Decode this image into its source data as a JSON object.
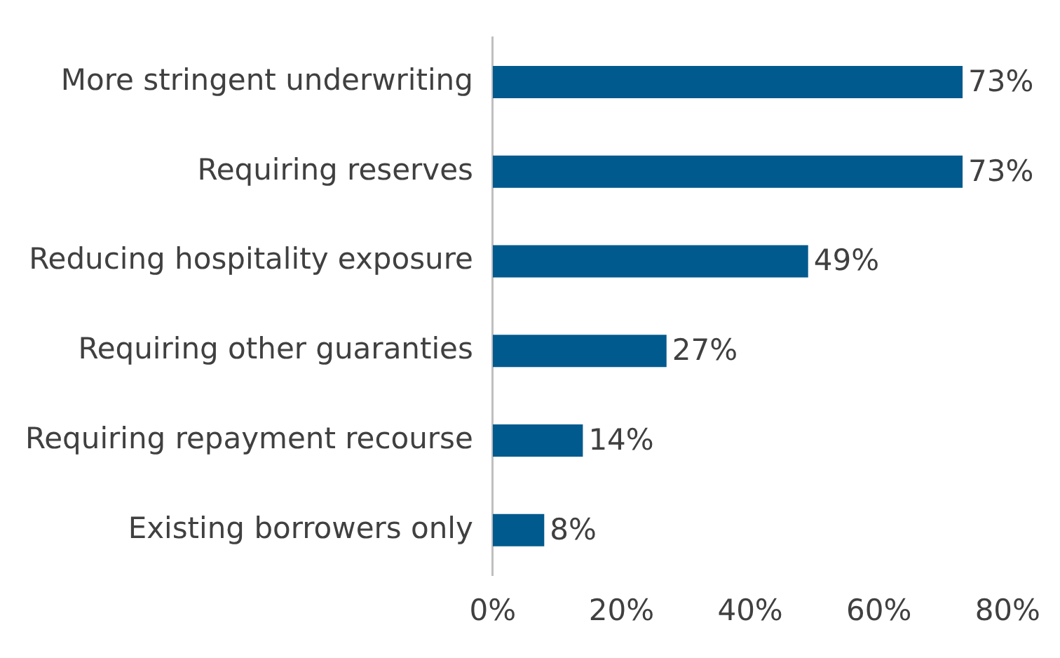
{
  "chart_data": {
    "type": "bar",
    "orientation": "horizontal",
    "categories": [
      "More stringent underwriting",
      "Requiring reserves",
      "Reducing hospitality exposure",
      "Requiring other guaranties",
      "Requiring repayment recourse",
      "Existing borrowers only"
    ],
    "values": [
      73,
      73,
      49,
      27,
      14,
      8
    ],
    "value_labels": [
      "73%",
      "73%",
      "49%",
      "27%",
      "14%",
      "8%"
    ],
    "color": "#005a8e",
    "xlim": [
      0,
      80
    ],
    "xticks": [
      {
        "value": 0,
        "label": "0%"
      },
      {
        "value": 20,
        "label": "20%"
      },
      {
        "value": 40,
        "label": "40%"
      },
      {
        "value": 60,
        "label": "60%"
      },
      {
        "value": 80,
        "label": "80%"
      }
    ],
    "grid": false,
    "legend": false
  }
}
